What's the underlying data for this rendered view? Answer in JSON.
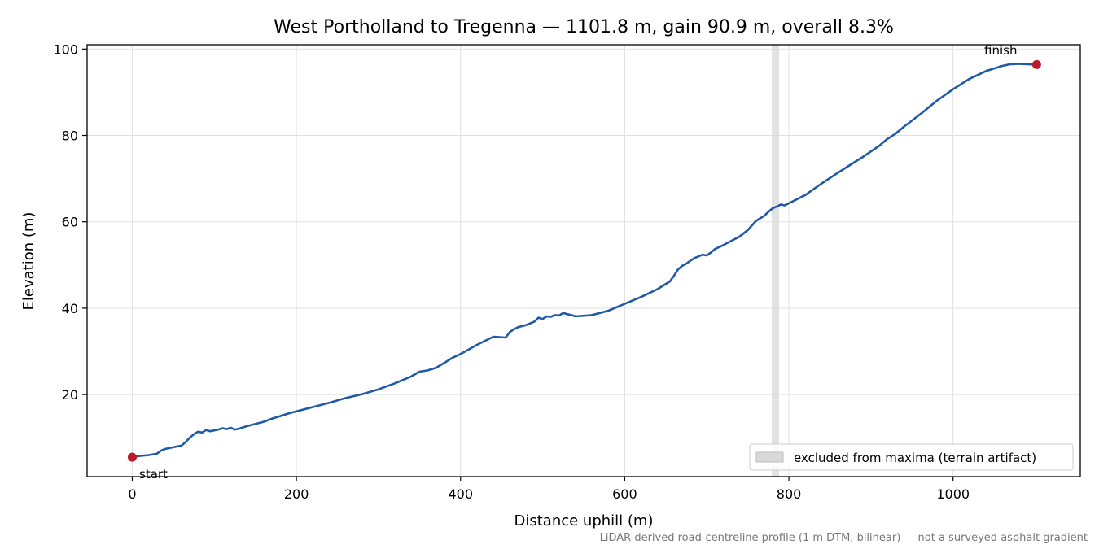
{
  "chart_data": {
    "type": "line",
    "title": "West Portholland to Tregenna — 1101.8 m, gain 90.9 m, overall 8.3%",
    "xlabel": "Distance uphill (m)",
    "ylabel": "Elevation (m)",
    "xlim": [
      -55,
      1155
    ],
    "ylim": [
      1,
      101
    ],
    "xticks": [
      0,
      200,
      400,
      600,
      800,
      1000
    ],
    "yticks": [
      20,
      40,
      60,
      80,
      100
    ],
    "grid": true,
    "line_color": "#1f5aa8",
    "marker_color": "#c0182a",
    "series": [
      {
        "x": [
          0,
          10,
          20,
          30,
          35,
          40,
          50,
          60,
          65,
          70,
          75,
          80,
          85,
          90,
          95,
          100,
          105,
          110,
          115,
          120,
          125,
          130,
          140,
          150,
          160,
          170,
          180,
          190,
          200,
          220,
          240,
          260,
          280,
          300,
          320,
          340,
          350,
          360,
          370,
          380,
          390,
          400,
          420,
          440,
          455,
          460,
          465,
          470,
          480,
          490,
          495,
          500,
          505,
          510,
          515,
          520,
          525,
          530,
          535,
          540,
          560,
          580,
          600,
          620,
          640,
          655,
          660,
          665,
          670,
          675,
          680,
          685,
          690,
          695,
          700,
          705,
          710,
          720,
          730,
          740,
          750,
          760,
          770,
          775,
          780,
          785,
          790,
          795,
          800,
          820,
          840,
          860,
          880,
          890,
          900,
          910,
          915,
          920,
          930,
          940,
          960,
          980,
          1000,
          1020,
          1040,
          1060,
          1070,
          1080,
          1090,
          1101.8
        ],
        "y": [
          5.5,
          5.8,
          6.0,
          6.3,
          7.0,
          7.4,
          7.8,
          8.2,
          9.0,
          10.0,
          10.8,
          11.4,
          11.2,
          11.8,
          11.5,
          11.7,
          11.9,
          12.2,
          12.0,
          12.3,
          11.9,
          12.1,
          12.7,
          13.2,
          13.7,
          14.4,
          15.0,
          15.6,
          16.1,
          17.1,
          18.1,
          19.2,
          20.1,
          21.2,
          22.6,
          24.2,
          25.3,
          25.6,
          26.2,
          27.3,
          28.5,
          29.4,
          31.5,
          33.4,
          33.2,
          34.5,
          35.1,
          35.6,
          36.1,
          36.9,
          37.8,
          37.5,
          38.1,
          38.0,
          38.4,
          38.3,
          38.9,
          38.6,
          38.4,
          38.1,
          38.4,
          39.4,
          41.0,
          42.6,
          44.4,
          46.2,
          47.5,
          49.0,
          49.8,
          50.3,
          51.0,
          51.6,
          52.0,
          52.4,
          52.2,
          52.9,
          53.7,
          54.6,
          55.6,
          56.6,
          58.1,
          60.2,
          61.4,
          62.3,
          63.1,
          63.5,
          64.0,
          63.8,
          64.3,
          66.2,
          68.9,
          71.4,
          73.8,
          75.0,
          76.3,
          77.6,
          78.4,
          79.2,
          80.4,
          82.0,
          84.9,
          88.0,
          90.7,
          93.1,
          94.9,
          96.1,
          96.5,
          96.6,
          96.5,
          96.4
        ]
      }
    ],
    "start_point": {
      "x": 0,
      "y": 5.5,
      "label": "start"
    },
    "finish_point": {
      "x": 1101.8,
      "y": 96.4,
      "label": "finish"
    },
    "excluded_band": {
      "x0": 779,
      "x1": 788,
      "legend": "excluded from maxima (terrain artifact)"
    },
    "legend_position": "lower right",
    "footnote": "LiDAR-derived road-centreline profile (1 m DTM, bilinear) — not a surveyed asphalt gradient"
  }
}
